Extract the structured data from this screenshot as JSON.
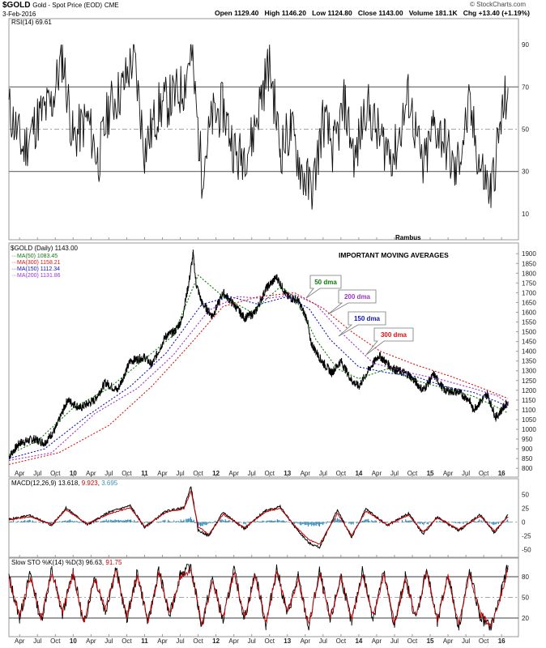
{
  "header": {
    "symbol": "$GOLD",
    "description": "Gold - Spot Price (EOD)",
    "exchange": "CME",
    "date": "3-Feb-2016",
    "open_label": "Open",
    "open": "1129.40",
    "high_label": "High",
    "high": "1146.20",
    "low_label": "Low",
    "low": "1124.80",
    "close_label": "Close",
    "close": "1143.00",
    "volume_label": "Volume",
    "volume": "181.1K",
    "chg_label": "Chg",
    "chg": "+13.40 (+1.19%)",
    "watermark": "© StockCharts.com",
    "author": "Rambus"
  },
  "rsi_panel": {
    "legend": "RSI(14) 69.61",
    "ticks": [
      "90",
      "70",
      "50",
      "30",
      "10"
    ]
  },
  "price_panel": {
    "legend_title": "$GOLD (Daily) 1143.00",
    "ma_legend": [
      {
        "label": "MA(50) 1083.45",
        "color": "#0a7a0a"
      },
      {
        "label": "MA(300) 1158.21",
        "color": "#dd1111"
      },
      {
        "label": "MA(150) 1112.34",
        "color": "#1111bb"
      },
      {
        "label": "MA(200) 1131.86",
        "color": "#9933cc"
      }
    ],
    "annotation_title": "IMPORTANT MOVING AVERAGES",
    "callouts": [
      {
        "label": "50 dma",
        "color": "#0a7a0a"
      },
      {
        "label": "200 dma",
        "color": "#9933cc"
      },
      {
        "label": "150 dma",
        "color": "#1111bb"
      },
      {
        "label": "300 dma",
        "color": "#dd1111"
      }
    ]
  },
  "macd_panel": {
    "legend_prefix": "MACD(12,26,9)",
    "macd": "13.618",
    "signal": "9.923",
    "hist": "3.695",
    "ticks": [
      "50",
      "25",
      "0",
      "-25",
      "-50"
    ]
  },
  "sto_panel": {
    "legend_prefix": "Slow STO %K(14) %D(3)",
    "k": "96.63",
    "d": "91.75",
    "ticks": [
      "80",
      "50",
      "20"
    ]
  },
  "colors": {
    "accent_red": "#cc0000",
    "macd_hist": "#3a8fb7",
    "rsi_fill_top": "#2f6e2f",
    "rsi_fill_bottom": "#a23"
  },
  "chart_data": {
    "type": "line",
    "title": "$GOLD Gold - Spot Price (EOD) CME",
    "x_tick_labels": [
      "Apr",
      "Jul",
      "Oct",
      "10",
      "Apr",
      "Jul",
      "Oct",
      "11",
      "Apr",
      "Jul",
      "Oct",
      "12",
      "Apr",
      "Jul",
      "Oct",
      "13",
      "Apr",
      "Jul",
      "Oct",
      "14",
      "Apr",
      "Jul",
      "Oct",
      "15",
      "Apr",
      "Jul",
      "Oct",
      "16"
    ],
    "x_bold_ticks": [
      "10",
      "11",
      "12",
      "13",
      "14",
      "15",
      "16"
    ],
    "x_range_years": [
      2009.1,
      2016.1
    ],
    "price": {
      "ylim": [
        780,
        1930
      ],
      "y_ticks": [
        800,
        850,
        900,
        950,
        1000,
        1050,
        1100,
        1150,
        1200,
        1250,
        1300,
        1350,
        1400,
        1450,
        1500,
        1550,
        1600,
        1650,
        1700,
        1750,
        1800,
        1850,
        1900
      ],
      "series": [
        {
          "name": "$GOLD",
          "kind": "price",
          "x": [
            2009.1,
            2009.25,
            2009.45,
            2009.6,
            2009.75,
            2009.92,
            2010.1,
            2010.3,
            2010.45,
            2010.62,
            2010.8,
            2011.0,
            2011.1,
            2011.3,
            2011.42,
            2011.52,
            2011.62,
            2011.68,
            2011.72,
            2011.8,
            2011.95,
            2012.1,
            2012.25,
            2012.4,
            2012.55,
            2012.7,
            2012.85,
            2013.0,
            2013.15,
            2013.28,
            2013.32,
            2013.48,
            2013.62,
            2013.75,
            2013.9,
            2014.0,
            2014.15,
            2014.28,
            2014.45,
            2014.55,
            2014.7,
            2014.9,
            2015.05,
            2015.2,
            2015.4,
            2015.55,
            2015.6,
            2015.8,
            2015.92,
            2016.0,
            2016.09
          ],
          "y": [
            860,
            930,
            950,
            930,
            1000,
            1150,
            1110,
            1150,
            1240,
            1200,
            1350,
            1370,
            1330,
            1480,
            1500,
            1560,
            1750,
            1900,
            1750,
            1650,
            1580,
            1700,
            1640,
            1570,
            1600,
            1720,
            1780,
            1680,
            1660,
            1560,
            1450,
            1350,
            1290,
            1350,
            1250,
            1220,
            1310,
            1380,
            1320,
            1300,
            1280,
            1200,
            1280,
            1200,
            1190,
            1150,
            1100,
            1180,
            1060,
            1100,
            1143
          ]
        },
        {
          "name": "MA(50)",
          "kind": "ma",
          "color": "#0a7a0a",
          "x": [
            2009.1,
            2009.5,
            2010.0,
            2010.5,
            2011.0,
            2011.4,
            2011.75,
            2012.1,
            2012.5,
            2012.9,
            2013.1,
            2013.4,
            2013.7,
            2014.0,
            2014.4,
            2014.8,
            2015.2,
            2015.6,
            2015.9,
            2016.09
          ],
          "y": [
            870,
            940,
            1110,
            1210,
            1360,
            1480,
            1790,
            1680,
            1600,
            1730,
            1680,
            1460,
            1310,
            1260,
            1310,
            1250,
            1210,
            1170,
            1120,
            1083
          ]
        },
        {
          "name": "MA(150)",
          "kind": "ma",
          "color": "#1111bb",
          "x": [
            2009.1,
            2009.6,
            2010.2,
            2010.8,
            2011.3,
            2011.8,
            2012.2,
            2012.6,
            2013.0,
            2013.3,
            2013.6,
            2014.0,
            2014.4,
            2014.8,
            2015.2,
            2015.6,
            2015.95,
            2016.09
          ],
          "y": [
            850,
            900,
            1070,
            1220,
            1390,
            1640,
            1680,
            1640,
            1680,
            1620,
            1460,
            1320,
            1290,
            1270,
            1220,
            1190,
            1140,
            1112
          ]
        },
        {
          "name": "MA(200)",
          "kind": "ma",
          "color": "#9933cc",
          "x": [
            2009.1,
            2009.7,
            2010.3,
            2010.9,
            2011.4,
            2011.9,
            2012.3,
            2012.7,
            2013.1,
            2013.4,
            2013.8,
            2014.2,
            2014.7,
            2015.1,
            2015.6,
            2015.95,
            2016.09
          ],
          "y": [
            840,
            880,
            1080,
            1210,
            1380,
            1610,
            1680,
            1670,
            1690,
            1640,
            1480,
            1340,
            1290,
            1260,
            1210,
            1170,
            1131
          ]
        },
        {
          "name": "MA(300)",
          "kind": "ma",
          "color": "#dd1111",
          "x": [
            2009.1,
            2009.8,
            2010.5,
            2011.1,
            2011.6,
            2012.1,
            2012.6,
            2013.1,
            2013.5,
            2013.9,
            2014.3,
            2014.8,
            2015.3,
            2015.8,
            2016.09
          ],
          "y": [
            820,
            880,
            1020,
            1220,
            1420,
            1630,
            1680,
            1700,
            1620,
            1500,
            1400,
            1330,
            1270,
            1200,
            1158
          ]
        }
      ]
    },
    "rsi": {
      "ylim": [
        0,
        100
      ],
      "ref_lines": [
        70,
        50,
        30
      ],
      "x": [
        2009.1,
        2009.3,
        2009.5,
        2009.7,
        2009.85,
        2010.0,
        2010.2,
        2010.35,
        2010.5,
        2010.7,
        2010.85,
        2011.0,
        2011.2,
        2011.4,
        2011.55,
        2011.65,
        2011.8,
        2011.95,
        2012.1,
        2012.3,
        2012.5,
        2012.65,
        2012.75,
        2012.9,
        2013.05,
        2013.2,
        2013.35,
        2013.5,
        2013.65,
        2013.8,
        2013.95,
        2014.1,
        2014.3,
        2014.5,
        2014.7,
        2014.9,
        2015.05,
        2015.2,
        2015.35,
        2015.55,
        2015.7,
        2015.85,
        2016.0,
        2016.09
      ],
      "y": [
        60,
        40,
        55,
        62,
        85,
        45,
        55,
        35,
        60,
        70,
        85,
        40,
        60,
        65,
        70,
        88,
        30,
        55,
        60,
        35,
        45,
        68,
        82,
        40,
        50,
        30,
        20,
        55,
        40,
        62,
        35,
        62,
        45,
        38,
        66,
        30,
        52,
        45,
        28,
        60,
        32,
        20,
        55,
        69.61
      ]
    },
    "macd": {
      "ylim": [
        -55,
        70
      ],
      "x": [
        2009.1,
        2009.4,
        2009.7,
        2009.9,
        2010.2,
        2010.5,
        2010.8,
        2011.0,
        2011.3,
        2011.55,
        2011.65,
        2011.75,
        2011.9,
        2012.1,
        2012.4,
        2012.7,
        2012.9,
        2013.1,
        2013.3,
        2013.45,
        2013.7,
        2013.9,
        2014.1,
        2014.4,
        2014.7,
        2014.9,
        2015.1,
        2015.4,
        2015.7,
        2015.9,
        2016.09
      ],
      "macd": [
        5,
        12,
        -6,
        26,
        -5,
        18,
        30,
        -10,
        20,
        26,
        65,
        -15,
        -25,
        18,
        -12,
        22,
        28,
        -8,
        -38,
        -46,
        22,
        -28,
        24,
        -6,
        16,
        -22,
        10,
        -16,
        14,
        -20,
        13.618
      ],
      "signal": [
        4,
        10,
        -4,
        22,
        -3,
        15,
        26,
        -8,
        18,
        24,
        56,
        -8,
        -22,
        14,
        -10,
        19,
        25,
        -6,
        -32,
        -40,
        16,
        -24,
        20,
        -5,
        13,
        -18,
        8,
        -13,
        11,
        -16,
        9.923
      ]
    },
    "slow_sto": {
      "ylim": [
        0,
        100
      ],
      "ref_lines": [
        80,
        50,
        20
      ],
      "x": [
        2009.1,
        2009.25,
        2009.4,
        2009.55,
        2009.7,
        2009.85,
        2010.0,
        2010.15,
        2010.3,
        2010.45,
        2010.6,
        2010.75,
        2010.9,
        2011.05,
        2011.2,
        2011.35,
        2011.5,
        2011.65,
        2011.8,
        2011.95,
        2012.1,
        2012.25,
        2012.4,
        2012.55,
        2012.7,
        2012.85,
        2013.0,
        2013.15,
        2013.3,
        2013.45,
        2013.6,
        2013.75,
        2013.9,
        2014.05,
        2014.2,
        2014.35,
        2014.5,
        2014.65,
        2014.8,
        2014.95,
        2015.1,
        2015.25,
        2015.4,
        2015.55,
        2015.7,
        2015.85,
        2016.0,
        2016.09
      ],
      "k": [
        80,
        20,
        85,
        15,
        90,
        25,
        88,
        10,
        82,
        30,
        92,
        18,
        86,
        12,
        90,
        22,
        84,
        95,
        8,
        78,
        15,
        90,
        20,
        85,
        10,
        92,
        25,
        80,
        5,
        88,
        15,
        82,
        12,
        90,
        20,
        86,
        8,
        80,
        18,
        92,
        12,
        84,
        6,
        88,
        22,
        5,
        60,
        96.63
      ],
      "d": [
        75,
        25,
        80,
        20,
        85,
        30,
        84,
        15,
        78,
        34,
        88,
        22,
        82,
        16,
        86,
        26,
        80,
        90,
        12,
        74,
        19,
        86,
        24,
        81,
        14,
        88,
        29,
        76,
        9,
        84,
        19,
        78,
        16,
        86,
        24,
        82,
        12,
        76,
        22,
        88,
        16,
        80,
        10,
        84,
        26,
        9,
        55,
        91.75
      ]
    }
  }
}
